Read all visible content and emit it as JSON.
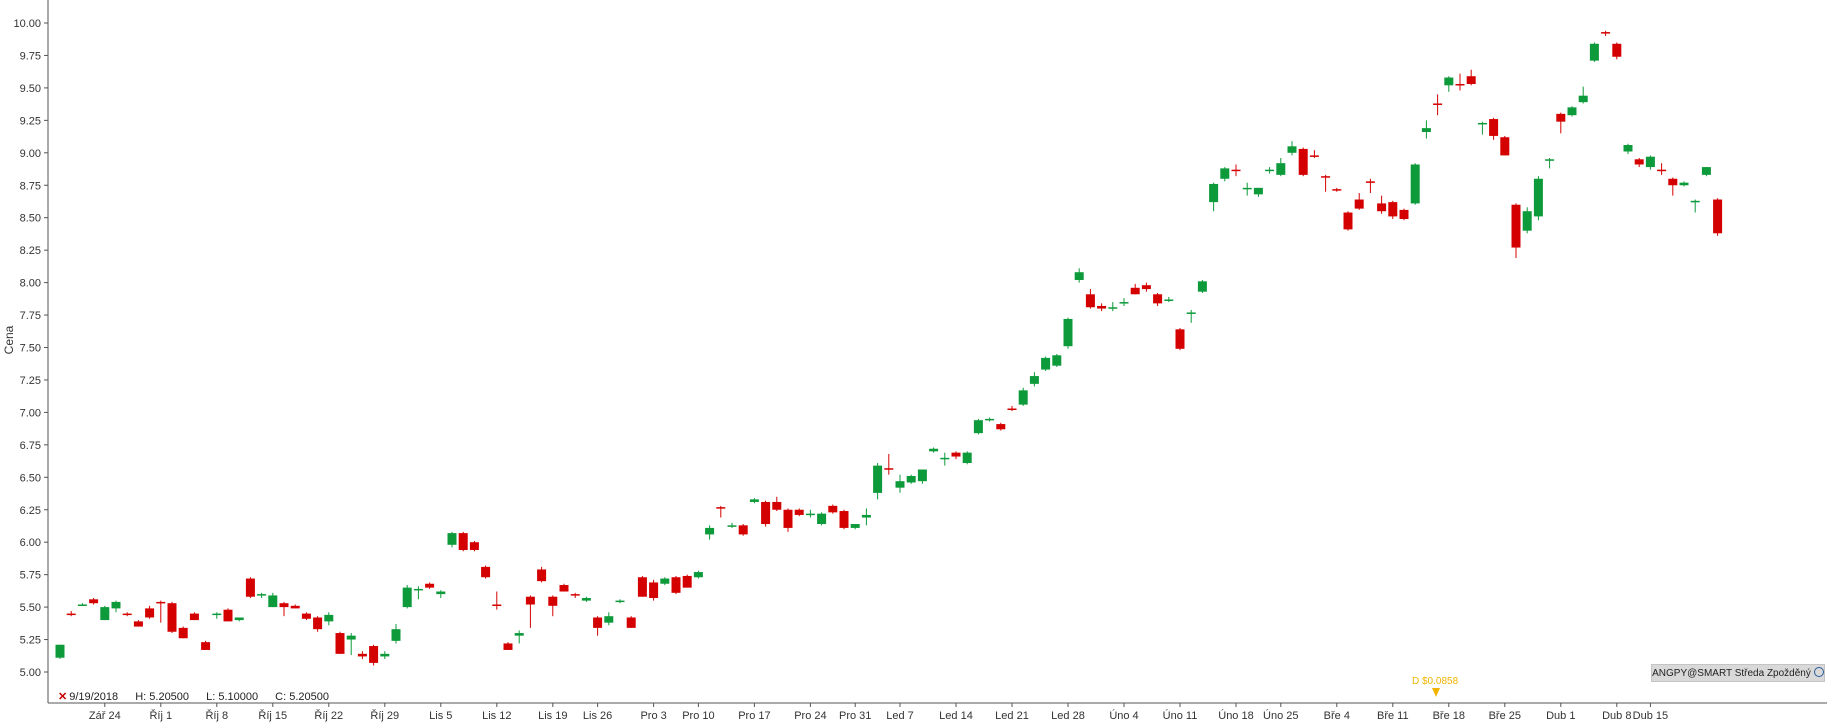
{
  "info_bar": {
    "date": "9/19/2018",
    "high": "H: 5.20500",
    "low": "L: 5.10000",
    "close": "C: 5.20500"
  },
  "badge": {
    "text": "ANGPY@SMART Středa Zpožděný"
  },
  "dividend": {
    "label": "D $0.0858"
  },
  "colors": {
    "up": "#0d9a3a",
    "down": "#d40000",
    "axis": "#555555",
    "dividend": "#f0b400"
  },
  "chart_data": {
    "type": "candlestick",
    "ylabel": "Cena",
    "ylim": [
      4.8,
      10.2
    ],
    "yticks": [
      "5.00",
      "5.25",
      "5.50",
      "5.75",
      "6.00",
      "6.25",
      "6.50",
      "6.75",
      "7.00",
      "7.25",
      "7.50",
      "7.75",
      "8.00",
      "8.25",
      "8.50",
      "8.75",
      "9.00",
      "9.25",
      "9.50",
      "9.75",
      "10.00"
    ],
    "xticks": [
      {
        "label": "Zář 24",
        "i": 4
      },
      {
        "label": "Říj 1",
        "i": 9
      },
      {
        "label": "Říj 8",
        "i": 14
      },
      {
        "label": "Říj 15",
        "i": 19
      },
      {
        "label": "Říj 22",
        "i": 24
      },
      {
        "label": "Říj 29",
        "i": 29
      },
      {
        "label": "Lis 5",
        "i": 34
      },
      {
        "label": "Lis 12",
        "i": 39
      },
      {
        "label": "Lis 19",
        "i": 44
      },
      {
        "label": "Lis 26",
        "i": 48
      },
      {
        "label": "Pro 3",
        "i": 53
      },
      {
        "label": "Pro 10",
        "i": 57
      },
      {
        "label": "Pro 17",
        "i": 62
      },
      {
        "label": "Pro 24",
        "i": 67
      },
      {
        "label": "Pro 31",
        "i": 71
      },
      {
        "label": "Led 7",
        "i": 75
      },
      {
        "label": "Led 14",
        "i": 80
      },
      {
        "label": "Led 21",
        "i": 85
      },
      {
        "label": "Led 28",
        "i": 90
      },
      {
        "label": "Úno 4",
        "i": 95
      },
      {
        "label": "Úno 11",
        "i": 100
      },
      {
        "label": "Úno 18",
        "i": 105
      },
      {
        "label": "Úno 25",
        "i": 109
      },
      {
        "label": "Bře 4",
        "i": 114
      },
      {
        "label": "Bře 11",
        "i": 119
      },
      {
        "label": "Bře 18",
        "i": 124
      },
      {
        "label": "Bře 25",
        "i": 129
      },
      {
        "label": "Dub 1",
        "i": 134
      },
      {
        "label": "Dub 8",
        "i": 139
      },
      {
        "label": "Dub 15",
        "i": 142
      }
    ],
    "candles": [
      {
        "o": 5.11,
        "h": 5.21,
        "l": 5.1,
        "c": 5.21
      },
      {
        "o": 5.45,
        "h": 5.47,
        "l": 5.43,
        "c": 5.44
      },
      {
        "o": 5.52,
        "h": 5.53,
        "l": 5.51,
        "c": 5.52
      },
      {
        "o": 5.56,
        "h": 5.57,
        "l": 5.52,
        "c": 5.53
      },
      {
        "o": 5.4,
        "h": 5.51,
        "l": 5.4,
        "c": 5.5
      },
      {
        "o": 5.49,
        "h": 5.55,
        "l": 5.46,
        "c": 5.54
      },
      {
        "o": 5.45,
        "h": 5.46,
        "l": 5.43,
        "c": 5.44
      },
      {
        "o": 5.39,
        "h": 5.4,
        "l": 5.35,
        "c": 5.35
      },
      {
        "o": 5.49,
        "h": 5.51,
        "l": 5.41,
        "c": 5.42
      },
      {
        "o": 5.54,
        "h": 5.55,
        "l": 5.38,
        "c": 5.53
      },
      {
        "o": 5.53,
        "h": 5.54,
        "l": 5.3,
        "c": 5.31
      },
      {
        "o": 5.34,
        "h": 5.35,
        "l": 5.26,
        "c": 5.26
      },
      {
        "o": 5.45,
        "h": 5.46,
        "l": 5.4,
        "c": 5.4
      },
      {
        "o": 5.23,
        "h": 5.24,
        "l": 5.17,
        "c": 5.17
      },
      {
        "o": 5.45,
        "h": 5.46,
        "l": 5.41,
        "c": 5.45
      },
      {
        "o": 5.48,
        "h": 5.49,
        "l": 5.39,
        "c": 5.39
      },
      {
        "o": 5.4,
        "h": 5.42,
        "l": 5.39,
        "c": 5.42
      },
      {
        "o": 5.72,
        "h": 5.73,
        "l": 5.57,
        "c": 5.58
      },
      {
        "o": 5.59,
        "h": 5.61,
        "l": 5.57,
        "c": 5.6
      },
      {
        "o": 5.5,
        "h": 5.61,
        "l": 5.5,
        "c": 5.59
      },
      {
        "o": 5.53,
        "h": 5.54,
        "l": 5.43,
        "c": 5.5
      },
      {
        "o": 5.51,
        "h": 5.52,
        "l": 5.49,
        "c": 5.49
      },
      {
        "o": 5.45,
        "h": 5.46,
        "l": 5.4,
        "c": 5.41
      },
      {
        "o": 5.42,
        "h": 5.43,
        "l": 5.31,
        "c": 5.33
      },
      {
        "o": 5.39,
        "h": 5.46,
        "l": 5.36,
        "c": 5.44
      },
      {
        "o": 5.3,
        "h": 5.31,
        "l": 5.14,
        "c": 5.14
      },
      {
        "o": 5.25,
        "h": 5.3,
        "l": 5.13,
        "c": 5.28
      },
      {
        "o": 5.14,
        "h": 5.16,
        "l": 5.1,
        "c": 5.12
      },
      {
        "o": 5.2,
        "h": 5.21,
        "l": 5.05,
        "c": 5.07
      },
      {
        "o": 5.12,
        "h": 5.16,
        "l": 5.1,
        "c": 5.14
      },
      {
        "o": 5.24,
        "h": 5.37,
        "l": 5.22,
        "c": 5.33
      },
      {
        "o": 5.5,
        "h": 5.67,
        "l": 5.49,
        "c": 5.65
      },
      {
        "o": 5.64,
        "h": 5.66,
        "l": 5.56,
        "c": 5.64
      },
      {
        "o": 5.68,
        "h": 5.69,
        "l": 5.64,
        "c": 5.65
      },
      {
        "o": 5.6,
        "h": 5.63,
        "l": 5.57,
        "c": 5.62
      },
      {
        "o": 5.98,
        "h": 6.08,
        "l": 5.96,
        "c": 6.07
      },
      {
        "o": 6.07,
        "h": 6.08,
        "l": 5.93,
        "c": 5.94
      },
      {
        "o": 6.0,
        "h": 6.01,
        "l": 5.93,
        "c": 5.94
      },
      {
        "o": 5.81,
        "h": 5.82,
        "l": 5.72,
        "c": 5.73
      },
      {
        "o": 5.52,
        "h": 5.62,
        "l": 5.48,
        "c": 5.51
      },
      {
        "o": 5.22,
        "h": 5.23,
        "l": 5.17,
        "c": 5.17
      },
      {
        "o": 5.28,
        "h": 5.32,
        "l": 5.22,
        "c": 5.3
      },
      {
        "o": 5.58,
        "h": 5.59,
        "l": 5.34,
        "c": 5.52
      },
      {
        "o": 5.79,
        "h": 5.81,
        "l": 5.69,
        "c": 5.7
      },
      {
        "o": 5.58,
        "h": 5.59,
        "l": 5.43,
        "c": 5.51
      },
      {
        "o": 5.67,
        "h": 5.68,
        "l": 5.62,
        "c": 5.62
      },
      {
        "o": 5.6,
        "h": 5.61,
        "l": 5.57,
        "c": 5.59
      },
      {
        "o": 5.55,
        "h": 5.58,
        "l": 5.54,
        "c": 5.57
      },
      {
        "o": 5.42,
        "h": 5.43,
        "l": 5.28,
        "c": 5.34
      },
      {
        "o": 5.38,
        "h": 5.46,
        "l": 5.36,
        "c": 5.43
      },
      {
        "o": 5.54,
        "h": 5.56,
        "l": 5.53,
        "c": 5.55
      },
      {
        "o": 5.42,
        "h": 5.43,
        "l": 5.34,
        "c": 5.34
      },
      {
        "o": 5.73,
        "h": 5.74,
        "l": 5.58,
        "c": 5.58
      },
      {
        "o": 5.69,
        "h": 5.71,
        "l": 5.55,
        "c": 5.57
      },
      {
        "o": 5.68,
        "h": 5.73,
        "l": 5.67,
        "c": 5.72
      },
      {
        "o": 5.73,
        "h": 5.74,
        "l": 5.6,
        "c": 5.61
      },
      {
        "o": 5.74,
        "h": 5.75,
        "l": 5.65,
        "c": 5.65
      },
      {
        "o": 5.73,
        "h": 5.78,
        "l": 5.72,
        "c": 5.77
      },
      {
        "o": 6.06,
        "h": 6.13,
        "l": 6.02,
        "c": 6.11
      },
      {
        "o": 6.27,
        "h": 6.28,
        "l": 6.19,
        "c": 6.26
      },
      {
        "o": 6.12,
        "h": 6.15,
        "l": 6.11,
        "c": 6.13
      },
      {
        "o": 6.13,
        "h": 6.14,
        "l": 6.05,
        "c": 6.06
      },
      {
        "o": 6.31,
        "h": 6.34,
        "l": 6.3,
        "c": 6.33
      },
      {
        "o": 6.31,
        "h": 6.32,
        "l": 6.12,
        "c": 6.14
      },
      {
        "o": 6.31,
        "h": 6.35,
        "l": 6.24,
        "c": 6.25
      },
      {
        "o": 6.25,
        "h": 6.26,
        "l": 6.08,
        "c": 6.11
      },
      {
        "o": 6.25,
        "h": 6.26,
        "l": 6.2,
        "c": 6.21
      },
      {
        "o": 6.22,
        "h": 6.25,
        "l": 6.19,
        "c": 6.22
      },
      {
        "o": 6.14,
        "h": 6.23,
        "l": 6.13,
        "c": 6.22
      },
      {
        "o": 6.28,
        "h": 6.29,
        "l": 6.22,
        "c": 6.23
      },
      {
        "o": 6.24,
        "h": 6.25,
        "l": 6.1,
        "c": 6.11
      },
      {
        "o": 6.11,
        "h": 6.14,
        "l": 6.1,
        "c": 6.14
      },
      {
        "o": 6.19,
        "h": 6.26,
        "l": 6.13,
        "c": 6.21
      },
      {
        "o": 6.38,
        "h": 6.61,
        "l": 6.33,
        "c": 6.59
      },
      {
        "o": 6.57,
        "h": 6.68,
        "l": 6.52,
        "c": 6.56
      },
      {
        "o": 6.42,
        "h": 6.52,
        "l": 6.38,
        "c": 6.47
      },
      {
        "o": 6.46,
        "h": 6.52,
        "l": 6.45,
        "c": 6.51
      },
      {
        "o": 6.47,
        "h": 6.56,
        "l": 6.45,
        "c": 6.56
      },
      {
        "o": 6.7,
        "h": 6.73,
        "l": 6.69,
        "c": 6.72
      },
      {
        "o": 6.64,
        "h": 6.69,
        "l": 6.59,
        "c": 6.65
      },
      {
        "o": 6.69,
        "h": 6.7,
        "l": 6.64,
        "c": 6.66
      },
      {
        "o": 6.61,
        "h": 6.7,
        "l": 6.6,
        "c": 6.69
      },
      {
        "o": 6.84,
        "h": 6.95,
        "l": 6.83,
        "c": 6.94
      },
      {
        "o": 6.95,
        "h": 6.96,
        "l": 6.93,
        "c": 6.95
      },
      {
        "o": 6.91,
        "h": 6.92,
        "l": 6.86,
        "c": 6.87
      },
      {
        "o": 7.03,
        "h": 7.05,
        "l": 7.01,
        "c": 7.02
      },
      {
        "o": 7.06,
        "h": 7.19,
        "l": 7.05,
        "c": 7.17
      },
      {
        "o": 7.22,
        "h": 7.31,
        "l": 7.2,
        "c": 7.28
      },
      {
        "o": 7.33,
        "h": 7.43,
        "l": 7.32,
        "c": 7.42
      },
      {
        "o": 7.36,
        "h": 7.45,
        "l": 7.35,
        "c": 7.44
      },
      {
        "o": 7.51,
        "h": 7.73,
        "l": 7.49,
        "c": 7.72
      },
      {
        "o": 8.02,
        "h": 8.11,
        "l": 8.0,
        "c": 8.08
      },
      {
        "o": 7.91,
        "h": 7.95,
        "l": 7.8,
        "c": 7.81
      },
      {
        "o": 7.82,
        "h": 7.84,
        "l": 7.78,
        "c": 7.8
      },
      {
        "o": 7.8,
        "h": 7.85,
        "l": 7.78,
        "c": 7.81
      },
      {
        "o": 7.84,
        "h": 7.88,
        "l": 7.82,
        "c": 7.85
      },
      {
        "o": 7.96,
        "h": 7.99,
        "l": 7.91,
        "c": 7.91
      },
      {
        "o": 7.98,
        "h": 8.0,
        "l": 7.93,
        "c": 7.95
      },
      {
        "o": 7.91,
        "h": 7.92,
        "l": 7.82,
        "c": 7.84
      },
      {
        "o": 7.86,
        "h": 7.89,
        "l": 7.85,
        "c": 7.87
      },
      {
        "o": 7.64,
        "h": 7.65,
        "l": 7.48,
        "c": 7.49
      },
      {
        "o": 7.76,
        "h": 7.79,
        "l": 7.69,
        "c": 7.77
      },
      {
        "o": 7.93,
        "h": 8.02,
        "l": 7.92,
        "c": 8.01
      },
      {
        "o": 8.62,
        "h": 8.77,
        "l": 8.55,
        "c": 8.76
      },
      {
        "o": 8.8,
        "h": 8.89,
        "l": 8.78,
        "c": 8.88
      },
      {
        "o": 8.87,
        "h": 8.91,
        "l": 8.82,
        "c": 8.86
      },
      {
        "o": 8.72,
        "h": 8.77,
        "l": 8.67,
        "c": 8.73
      },
      {
        "o": 8.68,
        "h": 8.73,
        "l": 8.66,
        "c": 8.73
      },
      {
        "o": 8.86,
        "h": 8.89,
        "l": 8.84,
        "c": 8.87
      },
      {
        "o": 8.83,
        "h": 8.96,
        "l": 8.82,
        "c": 8.92
      },
      {
        "o": 9.0,
        "h": 9.09,
        "l": 8.98,
        "c": 9.05
      },
      {
        "o": 9.03,
        "h": 9.04,
        "l": 8.82,
        "c": 8.83
      },
      {
        "o": 8.98,
        "h": 9.02,
        "l": 8.96,
        "c": 8.97
      },
      {
        "o": 8.82,
        "h": 8.83,
        "l": 8.7,
        "c": 8.81
      },
      {
        "o": 8.72,
        "h": 8.73,
        "l": 8.7,
        "c": 8.71
      },
      {
        "o": 8.54,
        "h": 8.55,
        "l": 8.4,
        "c": 8.41
      },
      {
        "o": 8.64,
        "h": 8.69,
        "l": 8.56,
        "c": 8.57
      },
      {
        "o": 8.78,
        "h": 8.8,
        "l": 8.69,
        "c": 8.77
      },
      {
        "o": 8.61,
        "h": 8.67,
        "l": 8.53,
        "c": 8.55
      },
      {
        "o": 8.62,
        "h": 8.63,
        "l": 8.49,
        "c": 8.51
      },
      {
        "o": 8.56,
        "h": 8.57,
        "l": 8.48,
        "c": 8.49
      },
      {
        "o": 8.61,
        "h": 8.92,
        "l": 8.6,
        "c": 8.91
      },
      {
        "o": 9.16,
        "h": 9.25,
        "l": 9.11,
        "c": 9.19
      },
      {
        "o": 9.38,
        "h": 9.45,
        "l": 9.29,
        "c": 9.37
      },
      {
        "o": 9.52,
        "h": 9.59,
        "l": 9.47,
        "c": 9.58
      },
      {
        "o": 9.53,
        "h": 9.61,
        "l": 9.48,
        "c": 9.52
      },
      {
        "o": 9.59,
        "h": 9.64,
        "l": 9.52,
        "c": 9.53
      },
      {
        "o": 9.23,
        "h": 9.24,
        "l": 9.14,
        "c": 9.23
      },
      {
        "o": 9.26,
        "h": 9.27,
        "l": 9.1,
        "c": 9.13
      },
      {
        "o": 9.12,
        "h": 9.13,
        "l": 8.98,
        "c": 8.98
      },
      {
        "o": 8.6,
        "h": 8.61,
        "l": 8.19,
        "c": 8.27
      },
      {
        "o": 8.4,
        "h": 8.58,
        "l": 8.38,
        "c": 8.55
      },
      {
        "o": 8.51,
        "h": 8.82,
        "l": 8.48,
        "c": 8.8
      },
      {
        "o": 8.95,
        "h": 8.96,
        "l": 8.88,
        "c": 8.95
      },
      {
        "o": 9.3,
        "h": 9.31,
        "l": 9.15,
        "c": 9.24
      },
      {
        "o": 9.29,
        "h": 9.36,
        "l": 9.28,
        "c": 9.35
      },
      {
        "o": 9.39,
        "h": 9.51,
        "l": 9.38,
        "c": 9.44
      },
      {
        "o": 9.71,
        "h": 9.85,
        "l": 9.7,
        "c": 9.84
      },
      {
        "o": 9.93,
        "h": 9.94,
        "l": 9.9,
        "c": 9.92
      },
      {
        "o": 9.84,
        "h": 9.85,
        "l": 9.72,
        "c": 9.74
      },
      {
        "o": 9.01,
        "h": 9.07,
        "l": 8.99,
        "c": 9.06
      },
      {
        "o": 8.95,
        "h": 8.96,
        "l": 8.89,
        "c": 8.91
      },
      {
        "o": 8.89,
        "h": 8.98,
        "l": 8.87,
        "c": 8.97
      },
      {
        "o": 8.87,
        "h": 8.92,
        "l": 8.83,
        "c": 8.86
      },
      {
        "o": 8.8,
        "h": 8.81,
        "l": 8.67,
        "c": 8.75
      },
      {
        "o": 8.75,
        "h": 8.78,
        "l": 8.74,
        "c": 8.77
      },
      {
        "o": 8.62,
        "h": 8.64,
        "l": 8.54,
        "c": 8.63
      },
      {
        "o": 8.83,
        "h": 8.89,
        "l": 8.82,
        "c": 8.89
      },
      {
        "o": 8.64,
        "h": 8.65,
        "l": 8.36,
        "c": 8.38
      }
    ]
  }
}
